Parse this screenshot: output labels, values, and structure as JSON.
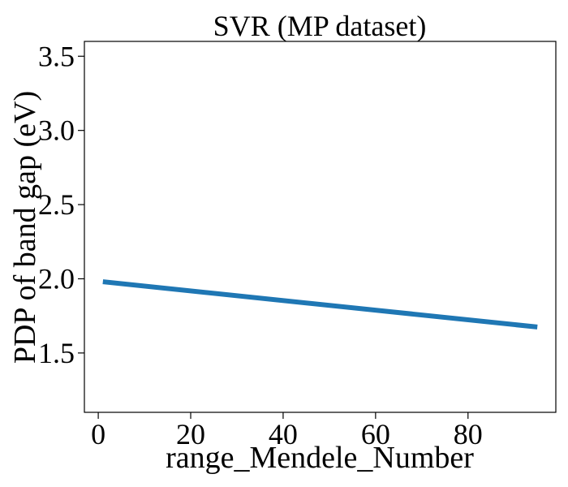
{
  "chart_data": {
    "type": "line",
    "title": "SVR (MP dataset)",
    "xlabel": "range_Mendele_Number",
    "ylabel": "PDP of band gap (eV)",
    "xlim": [
      -3,
      99
    ],
    "ylim": [
      1.1,
      3.6
    ],
    "xticks": [
      0,
      20,
      40,
      60,
      80
    ],
    "yticks": [
      1.5,
      2.0,
      2.5,
      3.0,
      3.5
    ],
    "xtick_labels": [
      "0",
      "20",
      "40",
      "60",
      "80"
    ],
    "ytick_labels": [
      "1.5",
      "2.0",
      "2.5",
      "3.0",
      "3.5"
    ],
    "grid": false,
    "legend": null,
    "series": [
      {
        "color": "#1f77b4",
        "x": [
          1,
          95
        ],
        "y": [
          1.98,
          1.675
        ]
      }
    ]
  }
}
